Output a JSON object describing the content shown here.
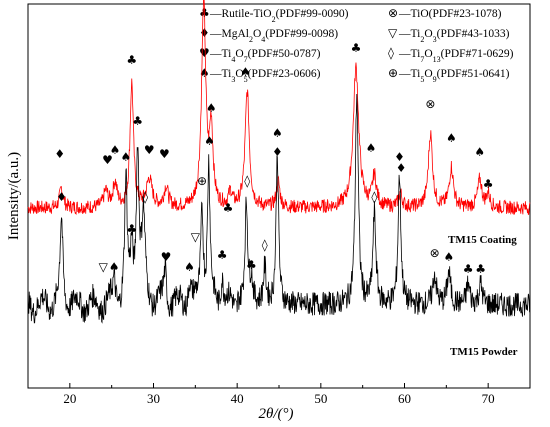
{
  "chart_data": {
    "type": "line",
    "xlabel": "2θ/(°)",
    "ylabel": "Intensity/(a.u.)",
    "xlim": [
      15,
      75
    ],
    "x_ticks": [
      20,
      30,
      40,
      50,
      60,
      70
    ],
    "y_ticks_shown": false,
    "grid": false,
    "legend_placement": "top",
    "series": [
      {
        "name": "TM15 Coating",
        "color": "#ff0000",
        "baseline": 1.0,
        "noise": 0.035,
        "peaks": [
          {
            "x": 19.0,
            "h": 0.1,
            "w": 0.25
          },
          {
            "x": 24.3,
            "h": 0.08,
            "w": 0.3
          },
          {
            "x": 25.4,
            "h": 0.12,
            "w": 0.3
          },
          {
            "x": 27.4,
            "h": 0.62,
            "w": 0.25
          },
          {
            "x": 29.5,
            "h": 0.14,
            "w": 0.4
          },
          {
            "x": 31.5,
            "h": 0.1,
            "w": 0.3
          },
          {
            "x": 36.0,
            "h": 1.02,
            "w": 0.3
          },
          {
            "x": 36.9,
            "h": 0.38,
            "w": 0.25
          },
          {
            "x": 39.2,
            "h": 0.07,
            "w": 0.25
          },
          {
            "x": 41.2,
            "h": 0.58,
            "w": 0.3
          },
          {
            "x": 44.9,
            "h": 0.13,
            "w": 0.25
          },
          {
            "x": 54.2,
            "h": 0.7,
            "w": 0.4
          },
          {
            "x": 56.4,
            "h": 0.15,
            "w": 0.3
          },
          {
            "x": 59.5,
            "h": 0.07,
            "w": 0.25
          },
          {
            "x": 63.1,
            "h": 0.37,
            "w": 0.3
          },
          {
            "x": 65.6,
            "h": 0.2,
            "w": 0.3
          },
          {
            "x": 69.0,
            "h": 0.14,
            "w": 0.3
          },
          {
            "x": 70.0,
            "h": 0.07,
            "w": 0.25
          }
        ]
      },
      {
        "name": "TM15 Powder",
        "color": "#000000",
        "baseline": 0.0,
        "noise": 0.06,
        "peaks": [
          {
            "x": 19.0,
            "h": 0.42,
            "w": 0.2
          },
          {
            "x": 25.3,
            "h": 0.12,
            "w": 0.2
          },
          {
            "x": 26.7,
            "h": 0.6,
            "w": 0.18
          },
          {
            "x": 27.4,
            "h": 0.26,
            "w": 0.2
          },
          {
            "x": 28.1,
            "h": 0.78,
            "w": 0.2
          },
          {
            "x": 28.8,
            "h": 0.4,
            "w": 0.25
          },
          {
            "x": 31.4,
            "h": 0.17,
            "w": 0.2
          },
          {
            "x": 34.3,
            "h": 0.12,
            "w": 0.2
          },
          {
            "x": 35.8,
            "h": 0.48,
            "w": 0.2
          },
          {
            "x": 36.6,
            "h": 0.68,
            "w": 0.18
          },
          {
            "x": 38.2,
            "h": 0.14,
            "w": 0.2
          },
          {
            "x": 41.1,
            "h": 0.5,
            "w": 0.2
          },
          {
            "x": 41.7,
            "h": 0.12,
            "w": 0.2
          },
          {
            "x": 43.3,
            "h": 0.18,
            "w": 0.2
          },
          {
            "x": 44.8,
            "h": 0.76,
            "w": 0.18
          },
          {
            "x": 54.3,
            "h": 1.05,
            "w": 0.22
          },
          {
            "x": 56.4,
            "h": 0.45,
            "w": 0.22
          },
          {
            "x": 59.4,
            "h": 0.65,
            "w": 0.2
          },
          {
            "x": 63.6,
            "h": 0.15,
            "w": 0.25
          },
          {
            "x": 65.3,
            "h": 0.16,
            "w": 0.25
          },
          {
            "x": 67.6,
            "h": 0.1,
            "w": 0.25
          },
          {
            "x": 69.1,
            "h": 0.1,
            "w": 0.25
          }
        ]
      }
    ],
    "annotations": [
      {
        "symbol": "♦",
        "x": 18.8,
        "series": 0,
        "h": 0.25
      },
      {
        "symbol": "♥",
        "x": 24.5,
        "series": 0,
        "h": 0.22
      },
      {
        "symbol": "♠",
        "x": 25.4,
        "series": 0,
        "h": 0.27
      },
      {
        "symbol": "♣",
        "x": 27.4,
        "series": 0,
        "h": 0.72
      },
      {
        "symbol": "♥",
        "x": 29.5,
        "series": 0,
        "h": 0.27
      },
      {
        "symbol": "♥",
        "x": 31.3,
        "series": 0,
        "h": 0.25
      },
      {
        "symbol": "♠",
        "x": 35.9,
        "series": 0,
        "h": 1.12
      },
      {
        "symbol": "♠",
        "x": 36.9,
        "series": 0,
        "h": 0.48
      },
      {
        "symbol": "♣",
        "x": 38.9,
        "series": 0,
        "h": -0.02
      },
      {
        "symbol": "♠",
        "x": 41.0,
        "series": 0,
        "h": 0.66
      },
      {
        "symbol": "♦",
        "x": 44.8,
        "series": 0,
        "h": 0.26
      },
      {
        "symbol": "♣",
        "x": 54.2,
        "series": 0,
        "h": 0.78
      },
      {
        "symbol": "♠",
        "x": 56.0,
        "series": 0,
        "h": 0.28
      },
      {
        "symbol": "♦",
        "x": 59.6,
        "series": 0,
        "h": 0.18
      },
      {
        "symbol": "⊗",
        "x": 63.1,
        "series": 0,
        "h": 0.5
      },
      {
        "symbol": "♠",
        "x": 65.6,
        "series": 0,
        "h": 0.33
      },
      {
        "symbol": "♠",
        "x": 69.0,
        "series": 0,
        "h": 0.26
      },
      {
        "symbol": "♣",
        "x": 70.0,
        "series": 0,
        "h": 0.1
      },
      {
        "symbol": "♦",
        "x": 19.0,
        "series": 1,
        "h": 0.52
      },
      {
        "symbol": "▽",
        "x": 24.0,
        "series": 1,
        "h": 0.17
      },
      {
        "symbol": "♠",
        "x": 25.3,
        "series": 1,
        "h": 0.17
      },
      {
        "symbol": "♠",
        "x": 26.7,
        "series": 1,
        "h": 0.72
      },
      {
        "symbol": "♣",
        "x": 27.4,
        "series": 1,
        "h": 0.36
      },
      {
        "symbol": "♣",
        "x": 28.1,
        "series": 1,
        "h": 0.9
      },
      {
        "symbol": "◊",
        "x": 29.0,
        "series": 1,
        "h": 0.52
      },
      {
        "symbol": "♥",
        "x": 31.5,
        "series": 1,
        "h": 0.22
      },
      {
        "symbol": "▽",
        "x": 35.0,
        "series": 1,
        "h": 0.32
      },
      {
        "symbol": "⊕",
        "x": 35.8,
        "series": 1,
        "h": 0.6
      },
      {
        "symbol": "♠",
        "x": 36.7,
        "series": 1,
        "h": 0.8
      },
      {
        "symbol": "♠",
        "x": 34.3,
        "series": 1,
        "h": 0.17
      },
      {
        "symbol": "♣",
        "x": 38.2,
        "series": 1,
        "h": 0.23
      },
      {
        "symbol": "◊",
        "x": 41.2,
        "series": 1,
        "h": 0.6
      },
      {
        "symbol": "♣",
        "x": 41.7,
        "series": 1,
        "h": 0.18
      },
      {
        "symbol": "◊",
        "x": 43.3,
        "series": 1,
        "h": 0.28
      },
      {
        "symbol": "♠",
        "x": 44.8,
        "series": 1,
        "h": 0.84
      },
      {
        "symbol": "◊",
        "x": 56.4,
        "series": 1,
        "h": 0.52
      },
      {
        "symbol": "♦",
        "x": 59.4,
        "series": 1,
        "h": 0.72
      },
      {
        "symbol": "⊗",
        "x": 63.6,
        "series": 1,
        "h": 0.24
      },
      {
        "symbol": "♠",
        "x": 65.3,
        "series": 1,
        "h": 0.22
      },
      {
        "symbol": "♣",
        "x": 67.6,
        "series": 1,
        "h": 0.16
      },
      {
        "symbol": "♣",
        "x": 69.1,
        "series": 1,
        "h": 0.16
      }
    ]
  },
  "legend": {
    "left": [
      {
        "symbol": "♣",
        "text": "—Rutile-TiO",
        "sub": "2",
        "rest": "(PDF#99-0090)"
      },
      {
        "symbol": "♦",
        "text": "—MgAl",
        "sub": "2",
        "mid": "O",
        "sub2": "4",
        "rest": "(PDF#99-0098)"
      },
      {
        "symbol": "♥",
        "text": "—Ti",
        "sub": "4",
        "mid": "O",
        "sub2": "7",
        "rest": "(PDF#50-0787)"
      },
      {
        "symbol": "♠",
        "text": "—Ti",
        "sub": "3",
        "mid": "O",
        "sub2": "5",
        "rest": "(PDF#23-0606)"
      }
    ],
    "right": [
      {
        "symbol": "⊗",
        "text": "—TiO(PDF#23-1078)"
      },
      {
        "symbol": "▽",
        "text": "—Ti",
        "sub": "2",
        "mid": "O",
        "sub2": "3",
        "rest": "(PDF#43-1033)"
      },
      {
        "symbol": "◊",
        "text": "—Ti",
        "sub": "7",
        "mid": "O",
        "sub2": "13",
        "rest": "(PDF#71-0629)"
      },
      {
        "symbol": "⊕",
        "text": "—Ti",
        "sub": "5",
        "mid": "O",
        "sub2": "9",
        "rest": "(PDF#51-0641)"
      }
    ]
  },
  "labels": {
    "coating": "TM15 Coating",
    "powder": "TM15 Powder"
  }
}
